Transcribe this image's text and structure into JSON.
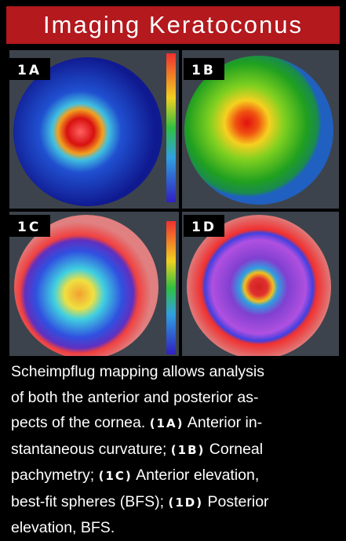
{
  "header": {
    "title": "Imaging Keratoconus"
  },
  "panels": [
    {
      "label": "1A"
    },
    {
      "label": "1B"
    },
    {
      "label": "1C"
    },
    {
      "label": "1D"
    }
  ],
  "caption": {
    "lines": [
      [
        "Scheimpflug mapping allows analysis"
      ],
      [
        "of both the anterior and posterior as-"
      ],
      [
        "pects of the cornea. ",
        {
          "ref": "(1A)"
        },
        " Anterior in-"
      ],
      [
        "stantaneous curvature; ",
        {
          "ref": "(1B)"
        },
        " Corneal"
      ],
      [
        "pachymetry; ",
        {
          "ref": "(1C)"
        },
        " Anterior elevation,"
      ],
      [
        "best-fit spheres (BFS); ",
        {
          "ref": "(1D)"
        },
        " Posterior"
      ],
      [
        "elevation, BFS."
      ]
    ]
  }
}
